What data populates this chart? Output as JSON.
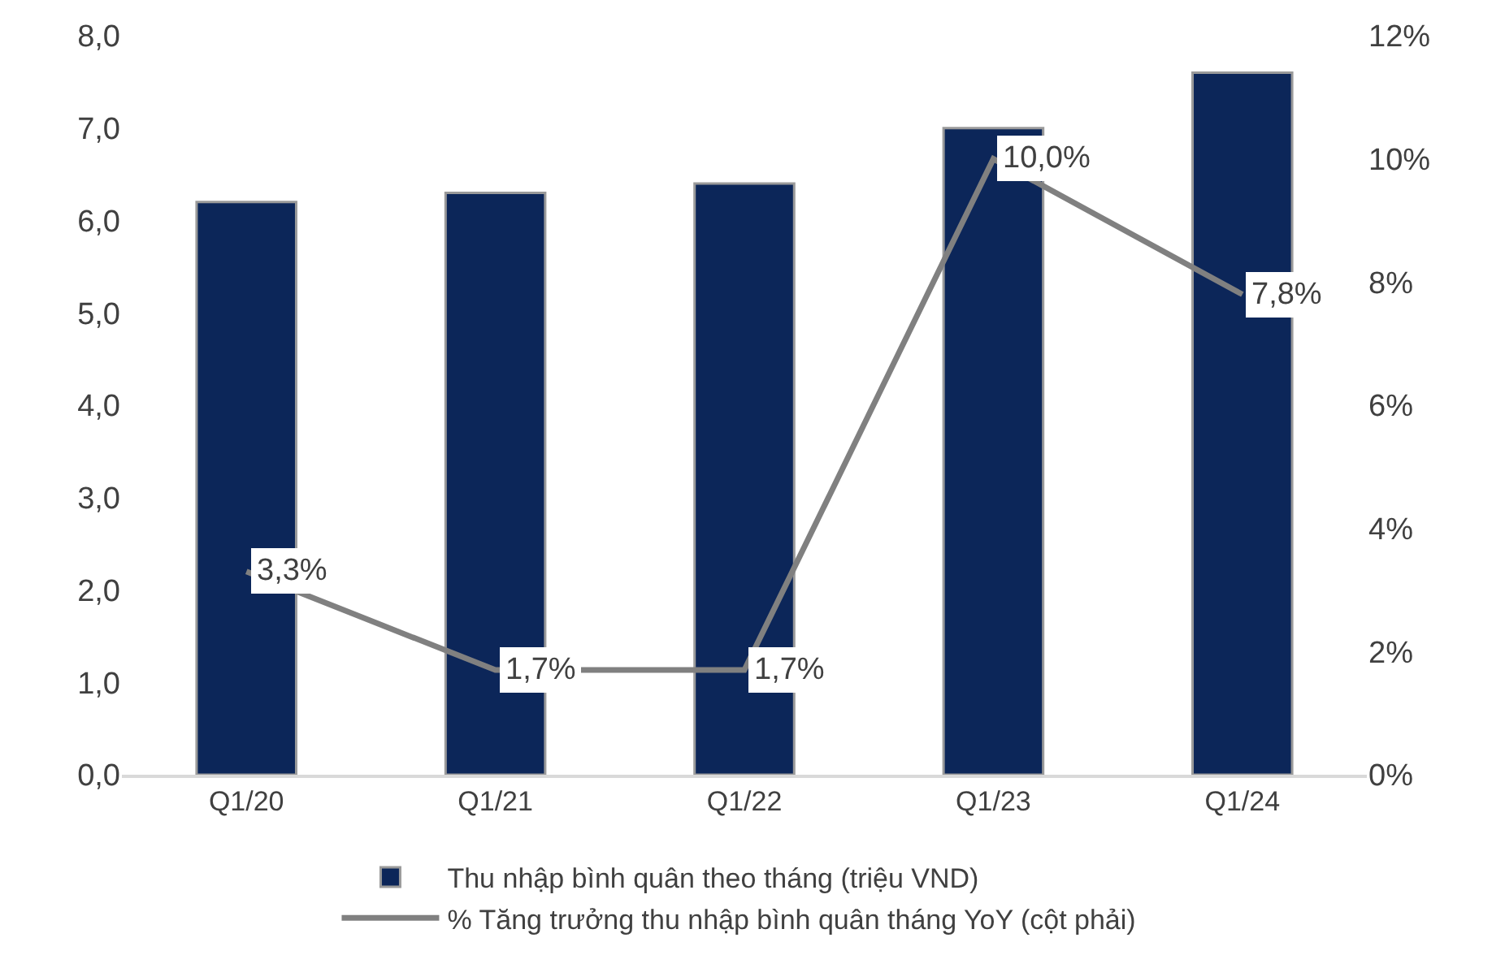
{
  "chart_data": {
    "type": "bar",
    "categories": [
      "Q1/20",
      "Q1/21",
      "Q1/22",
      "Q1/23",
      "Q1/24"
    ],
    "series": [
      {
        "name": "Thu nhập bình quân theo tháng (triệu VND)",
        "color": "#0c2659",
        "values": [
          6.2,
          6.3,
          6.4,
          7.0,
          7.6
        ]
      },
      {
        "name": "% Tăng trưởng thu nhập bình quân tháng YoY (cột phải)",
        "type": "line",
        "axis": "y2",
        "color": "#808080",
        "marker": "none",
        "line_style": "solid",
        "values": [
          3.3,
          1.7,
          1.7,
          10.0,
          7.8
        ],
        "value_labels": [
          "3,3%",
          "1,7%",
          "1,7%",
          "10,0%",
          "7,8%"
        ]
      }
    ],
    "ylim": [
      0,
      8
    ],
    "yticks": [
      {
        "value": 0,
        "label": "0,0"
      },
      {
        "value": 1,
        "label": "1,0"
      },
      {
        "value": 2,
        "label": "2,0"
      },
      {
        "value": 3,
        "label": "3,0"
      },
      {
        "value": 4,
        "label": "4,0"
      },
      {
        "value": 5,
        "label": "5,0"
      },
      {
        "value": 6,
        "label": "6,0"
      },
      {
        "value": 7,
        "label": "7,0"
      },
      {
        "value": 8,
        "label": "8,0"
      }
    ],
    "y2lim": [
      0,
      12
    ],
    "y2ticks": [
      {
        "value": 0,
        "label": "0%"
      },
      {
        "value": 2,
        "label": "2%"
      },
      {
        "value": 4,
        "label": "4%"
      },
      {
        "value": 6,
        "label": "6%"
      },
      {
        "value": 8,
        "label": "8%"
      },
      {
        "value": 10,
        "label": "10%"
      },
      {
        "value": 12,
        "label": "12%"
      }
    ],
    "grid": false,
    "legend": "bottom"
  }
}
